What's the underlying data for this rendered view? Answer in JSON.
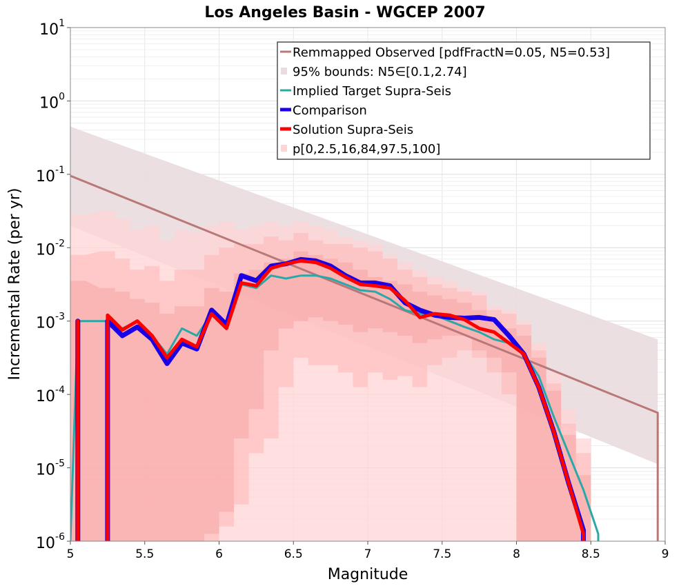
{
  "chart_data": {
    "type": "line",
    "title": "Los Angeles Basin - WGCEP 2007",
    "xlabel": "Magnitude",
    "ylabel": "Incremental Rate (per yr)",
    "xlim": [
      5,
      9
    ],
    "ylim_log10": [
      -6,
      1
    ],
    "y_scale": "log",
    "xticks": [
      "5",
      "5.5",
      "6",
      "6.5",
      "7",
      "7.5",
      "8",
      "8.5",
      "9"
    ],
    "yticks": [
      {
        "base": "10",
        "exp": "1"
      },
      {
        "base": "10",
        "exp": "0"
      },
      {
        "base": "10",
        "exp": "-1"
      },
      {
        "base": "10",
        "exp": "-2"
      },
      {
        "base": "10",
        "exp": "-3"
      },
      {
        "base": "10",
        "exp": "-4"
      },
      {
        "base": "10",
        "exp": "-5"
      },
      {
        "base": "10",
        "exp": "-6"
      }
    ],
    "colors": {
      "observed": "#b87878",
      "observed_band": "#e9dcdf",
      "target": "#2aa8a8",
      "comparison": "#1a00e6",
      "solution": "#ff0000",
      "band_outer": "#ffd4d4",
      "band_mid": "#ffbbbb",
      "band_inner": "#f6a4a4"
    },
    "legend": {
      "placement": "top-right",
      "entries": [
        {
          "label": "Remmapped Observed [pdfFractN=0.05, N5=0.53]",
          "kind": "line",
          "color_key": "observed"
        },
        {
          "label": "95% bounds: N5∈[0.1,2.74]",
          "kind": "band",
          "color_key": "observed_band"
        },
        {
          "label": "Implied Target Supra-Seis",
          "kind": "line",
          "color_key": "target"
        },
        {
          "label": "Comparison",
          "kind": "thick",
          "color_key": "comparison"
        },
        {
          "label": "Solution Supra-Seis",
          "kind": "thick",
          "color_key": "solution"
        },
        {
          "label": "p[0,2.5,16,84,97.5,100]",
          "kind": "band",
          "color_key": "band_outer"
        }
      ]
    },
    "observed": {
      "x": [
        5.0,
        8.95
      ],
      "log10_y": [
        -1.02,
        -4.25
      ],
      "drop_to_min_at": 8.95,
      "band_upper_log10": [
        -0.35,
        -3.25
      ],
      "band_lower_log10": [
        -1.7,
        -4.95
      ]
    },
    "solution_x": [
      5.05,
      5.25,
      5.35,
      5.45,
      5.55,
      5.65,
      5.75,
      5.85,
      5.95,
      6.05,
      6.15,
      6.25,
      6.35,
      6.45,
      6.55,
      6.65,
      6.75,
      6.85,
      6.95,
      7.05,
      7.15,
      7.25,
      7.35,
      7.45,
      7.55,
      7.65,
      7.75,
      7.85,
      7.95,
      8.05,
      8.15,
      8.25,
      8.35,
      8.45
    ],
    "solution_log10": [
      -3.0,
      -2.92,
      -3.12,
      -3.0,
      -3.2,
      -3.5,
      -3.25,
      -3.35,
      -2.9,
      -3.1,
      -2.48,
      -2.52,
      -2.28,
      -2.22,
      -2.18,
      -2.2,
      -2.28,
      -2.4,
      -2.5,
      -2.52,
      -2.55,
      -2.72,
      -2.95,
      -2.9,
      -2.92,
      -2.98,
      -3.1,
      -3.15,
      -3.3,
      -3.45,
      -3.9,
      -4.5,
      -5.2,
      -5.9
    ],
    "comparison_log10": [
      -3.0,
      -3.0,
      -3.2,
      -3.08,
      -3.25,
      -3.58,
      -3.3,
      -3.38,
      -2.85,
      -3.05,
      -2.38,
      -2.45,
      -2.25,
      -2.22,
      -2.16,
      -2.18,
      -2.25,
      -2.38,
      -2.48,
      -2.48,
      -2.52,
      -2.75,
      -2.85,
      -2.92,
      -2.95,
      -2.96,
      -2.95,
      -2.98,
      -3.2,
      -3.45,
      -3.9,
      -4.5,
      -5.2,
      -5.85
    ],
    "target_x": [
      5.0,
      5.05,
      5.25,
      5.35,
      5.45,
      5.55,
      5.65,
      5.75,
      5.85,
      5.95,
      6.05,
      6.15,
      6.25,
      6.35,
      6.45,
      6.55,
      6.65,
      6.75,
      6.85,
      6.95,
      7.05,
      7.15,
      7.25,
      7.35,
      7.45,
      7.55,
      7.65,
      7.75,
      7.85,
      7.95,
      8.05,
      8.15,
      8.25,
      8.35,
      8.45,
      8.55,
      8.55
    ],
    "target_log10": [
      -6.0,
      -3.0,
      -3.0,
      -3.1,
      -3.0,
      -3.2,
      -3.45,
      -3.1,
      -3.2,
      -2.9,
      -3.05,
      -2.5,
      -2.55,
      -2.38,
      -2.42,
      -2.38,
      -2.38,
      -2.42,
      -2.5,
      -2.58,
      -2.6,
      -2.7,
      -2.85,
      -2.9,
      -2.92,
      -3.0,
      -3.08,
      -3.15,
      -3.25,
      -3.3,
      -3.45,
      -3.75,
      -4.3,
      -4.8,
      -5.3,
      -5.9,
      -6.0
    ],
    "band_outer_upper": [
      -1.55,
      -1.5,
      -1.6,
      -1.75,
      -1.7,
      -1.9,
      -1.75,
      -1.8,
      -1.7,
      -1.65,
      -1.75,
      -1.7,
      -1.65,
      -1.7,
      -1.65,
      -1.7,
      -1.75,
      -1.85,
      -1.9,
      -1.95,
      -2.1,
      -2.2,
      -2.3,
      -2.4,
      -2.45,
      -2.55,
      -2.6,
      -2.8,
      -2.85,
      -3.0,
      -3.3,
      -3.7,
      -4.2,
      -4.6
    ],
    "band_outer_lower": [
      -6.0,
      -6.0,
      -6.0,
      -6.0,
      -6.0,
      -6.0,
      -6.0,
      -6.0,
      -6.0,
      -6.0,
      -6.0,
      -6.0,
      -6.0,
      -6.0,
      -6.0,
      -6.0,
      -6.0,
      -6.0,
      -6.0,
      -6.0,
      -6.0,
      -6.0,
      -6.0,
      -6.0,
      -6.0,
      -6.0,
      -6.0,
      -6.0,
      -6.0,
      -6.0,
      -6.0,
      -6.0,
      -6.0,
      -6.0
    ],
    "band_mid_upper": [
      -2.1,
      -2.05,
      -2.15,
      -2.3,
      -2.25,
      -2.45,
      -2.3,
      -2.3,
      -2.1,
      -2.0,
      -1.95,
      -1.95,
      -1.85,
      -1.9,
      -1.8,
      -1.9,
      -1.95,
      -1.95,
      -2.0,
      -2.05,
      -2.15,
      -2.3,
      -2.4,
      -2.5,
      -2.55,
      -2.6,
      -2.65,
      -2.85,
      -2.9,
      -3.05,
      -3.4,
      -3.85,
      -4.4,
      -4.8
    ],
    "band_mid_lower": [
      -6.0,
      -6.0,
      -6.0,
      -6.0,
      -6.0,
      -6.0,
      -6.0,
      -6.0,
      -6.0,
      -5.8,
      -5.5,
      -4.8,
      -4.6,
      -3.9,
      -3.5,
      -3.6,
      -3.6,
      -3.7,
      -3.9,
      -3.7,
      -3.8,
      -3.75,
      -3.9,
      -3.6,
      -3.5,
      -3.4,
      -3.5,
      -3.7,
      -4.0,
      -6.0,
      -6.0,
      -6.0,
      -6.0,
      -6.0
    ],
    "band_inner_upper": [
      -2.45,
      -2.55,
      -2.6,
      -2.7,
      -2.75,
      -2.9,
      -2.8,
      -2.8,
      -2.55,
      -2.6,
      -2.35,
      -2.3,
      -2.2,
      -2.15,
      -2.05,
      -2.1,
      -2.15,
      -2.2,
      -2.3,
      -2.4,
      -2.45,
      -2.5,
      -2.6,
      -2.65,
      -2.7,
      -2.75,
      -2.85,
      -3.0,
      -3.1,
      -3.2,
      -3.5,
      -3.95,
      -4.55,
      -5.1
    ],
    "band_inner_lower": [
      -6.0,
      -6.0,
      -6.0,
      -6.0,
      -6.0,
      -6.0,
      -6.0,
      -6.0,
      -5.9,
      -5.6,
      -4.6,
      -4.2,
      -3.4,
      -3.1,
      -3.0,
      -2.95,
      -3.0,
      -3.05,
      -3.15,
      -3.1,
      -3.15,
      -3.2,
      -3.3,
      -3.25,
      -3.2,
      -3.2,
      -3.4,
      -3.5,
      -3.7,
      -6.0,
      -6.0,
      -6.0,
      -6.0,
      -6.0
    ]
  }
}
